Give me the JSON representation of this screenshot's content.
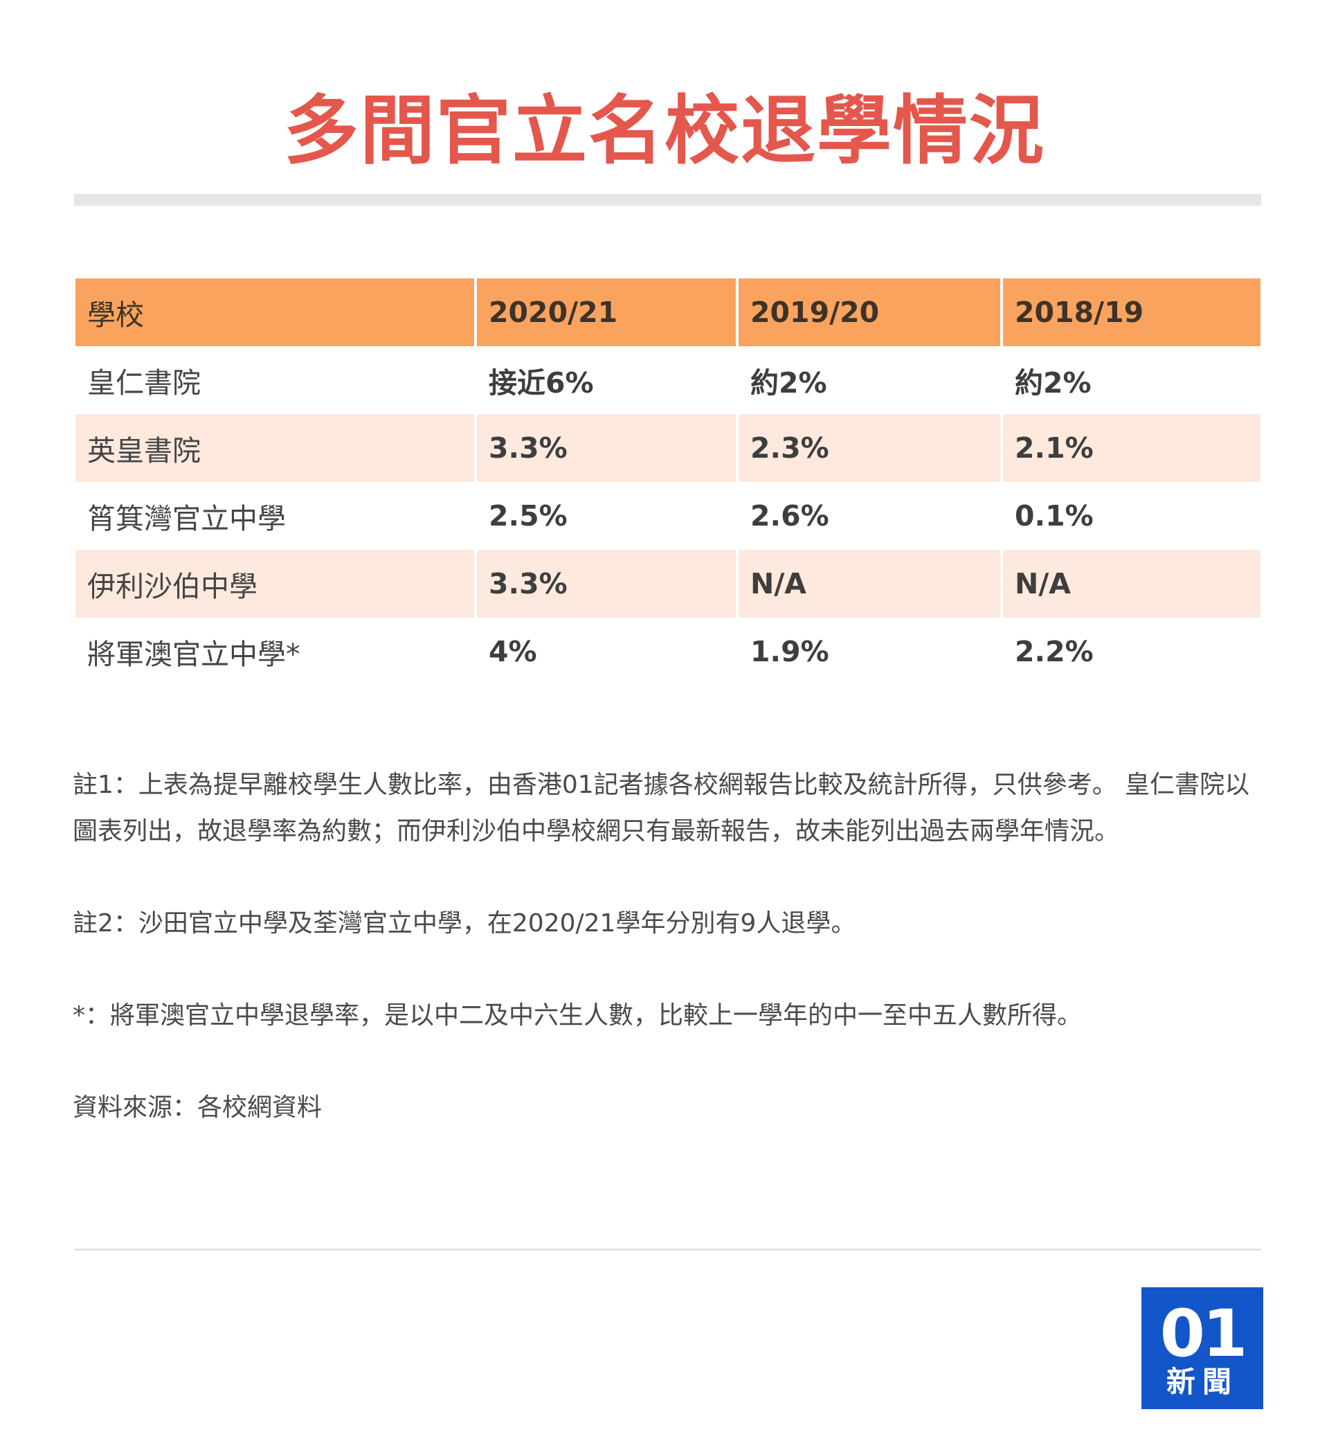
{
  "title": "多間官立名校退學情況",
  "chart_data": {
    "type": "table",
    "columns": [
      "學校",
      "2020/21",
      "2019/20",
      "2018/19"
    ],
    "rows": [
      {
        "school": "皇仁書院",
        "values": [
          "接近6%",
          "約2%",
          "約2%"
        ]
      },
      {
        "school": "英皇書院",
        "values": [
          "3.3%",
          "2.3%",
          "2.1%"
        ]
      },
      {
        "school": "筲箕灣官立中學",
        "values": [
          "2.5%",
          "2.6%",
          "0.1%"
        ]
      },
      {
        "school": "伊利沙伯中學",
        "values": [
          "3.3%",
          "N/A",
          "N/A"
        ]
      },
      {
        "school": "將軍澳官立中學*",
        "values": [
          "4%",
          "1.9%",
          "2.2%"
        ]
      }
    ]
  },
  "notes": {
    "note1": "註1：上表為提早離校學生人數比率，由香港01記者據各校網報告比較及統計所得，只供參考。 皇仁書院以圖表列出，故退學率為約數；而伊利沙伯中學校網只有最新報告，故未能列出過去兩學年情況。",
    "note2": "註2：沙田官立中學及荃灣官立中學，在2020/21學年分別有9人退學。",
    "note3": "*：將軍澳官立中學退學率，是以中二及中六生人數，比較上一學年的中一至中五人數所得。",
    "source": "資料來源：各校網資料"
  },
  "logo": {
    "mark": "01",
    "text": "新聞",
    "color": "#1256c9"
  },
  "colors": {
    "title": "#e4574c",
    "header": "#f9a35f",
    "stripe": "#fde9de"
  }
}
